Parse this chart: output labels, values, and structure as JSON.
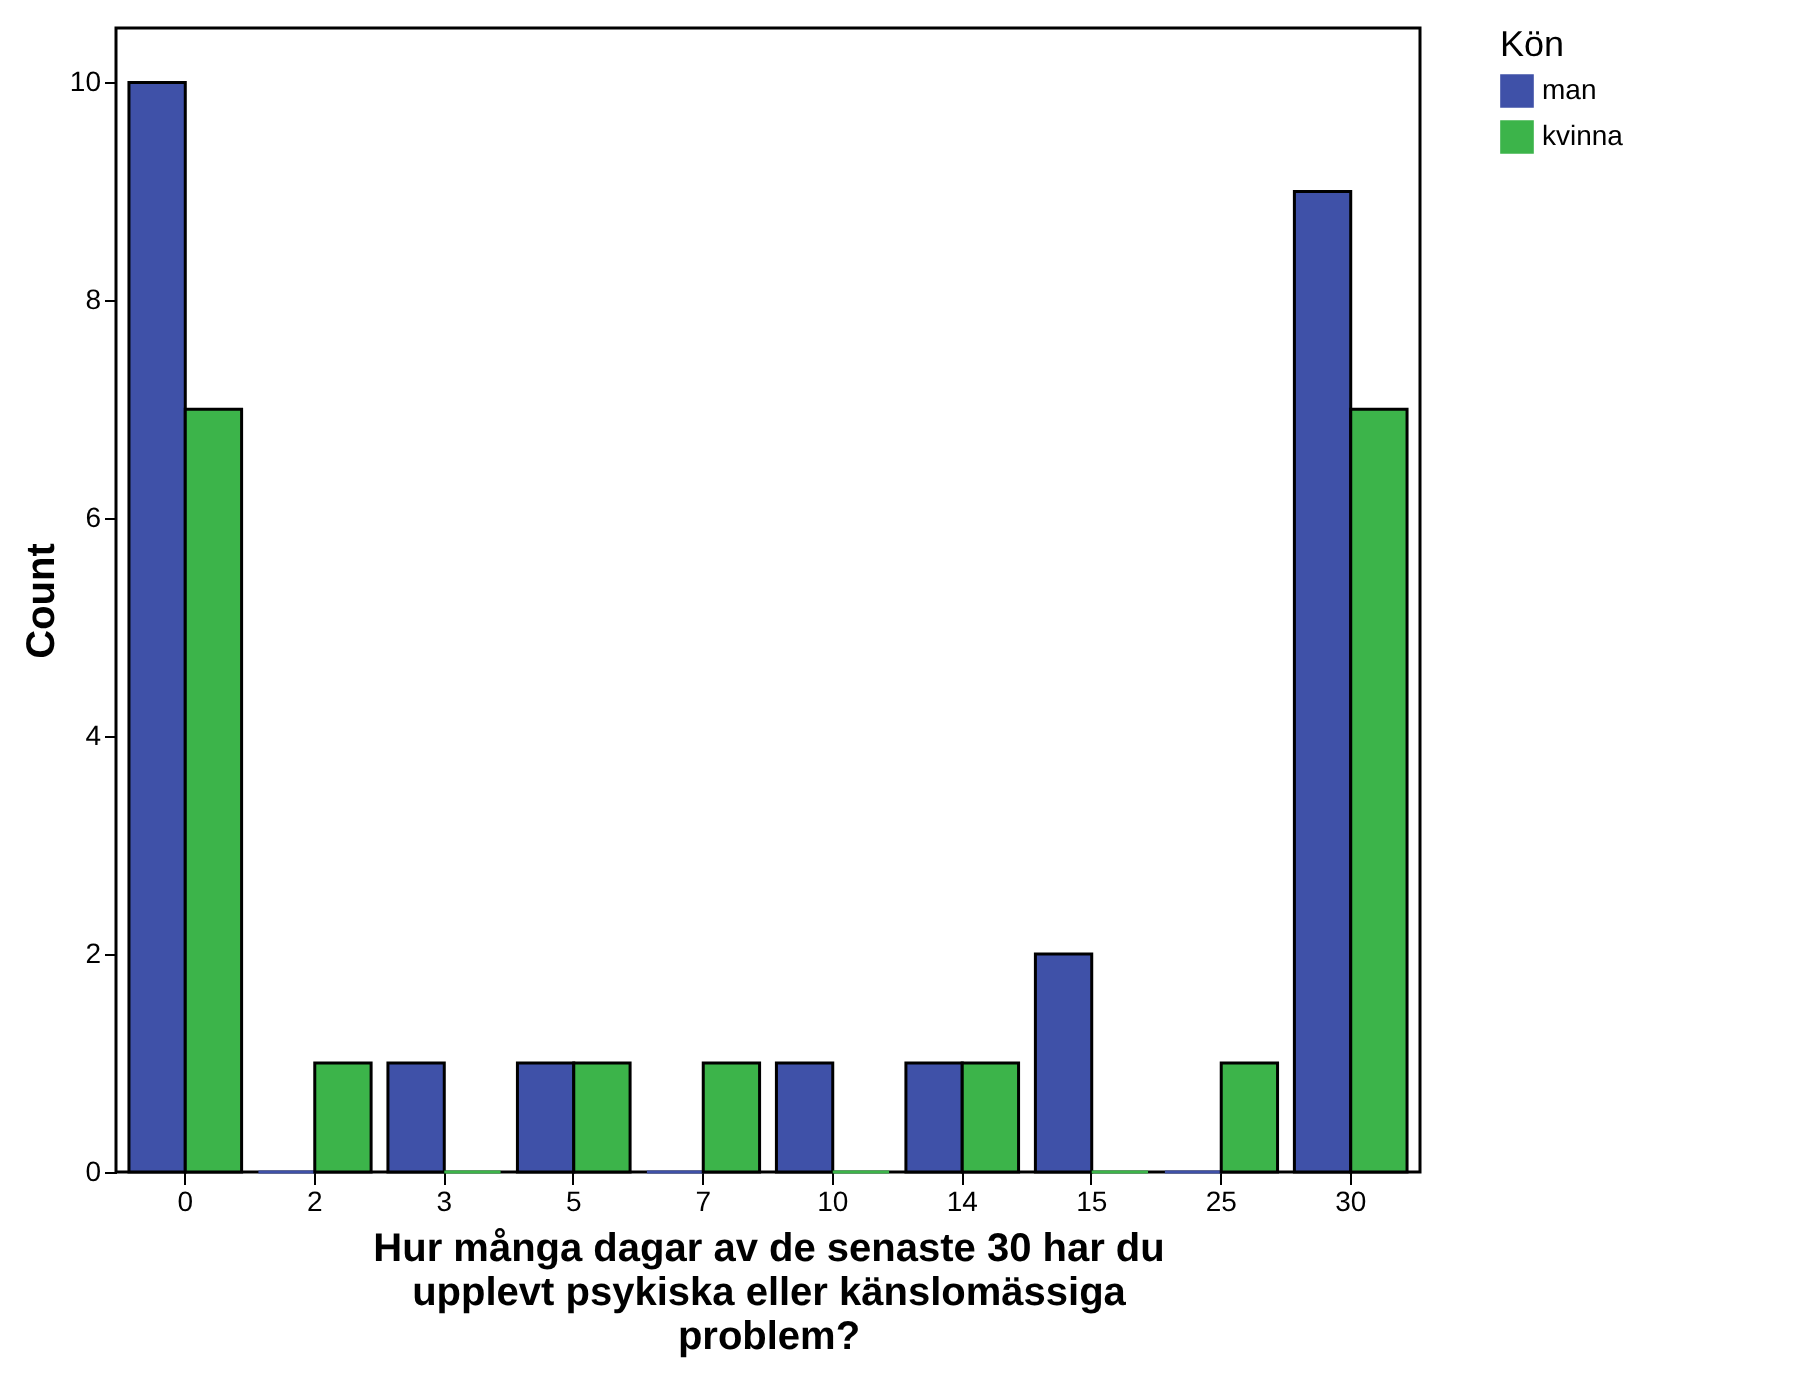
{
  "chart_data": {
    "type": "bar",
    "xlabel": "Hur många dagar av de senaste 30 har du upplevt psykiska eller känslomässiga problem?",
    "ylabel": "Count",
    "legend_title": "Kön",
    "legend": "top right",
    "grid": false,
    "categories": [
      "0",
      "2",
      "3",
      "5",
      "7",
      "10",
      "14",
      "15",
      "25",
      "30"
    ],
    "ylim": [
      0,
      10.5
    ],
    "yticks": [
      0,
      2,
      4,
      6,
      8,
      10
    ],
    "series": [
      {
        "name": "man",
        "color": "#3f51a8",
        "values": [
          10,
          0,
          1,
          1,
          0,
          1,
          1,
          2,
          0,
          9
        ]
      },
      {
        "name": "kvinna",
        "color": "#3cb44a",
        "values": [
          7,
          1,
          0,
          1,
          1,
          0,
          1,
          0,
          1,
          7
        ]
      }
    ]
  }
}
